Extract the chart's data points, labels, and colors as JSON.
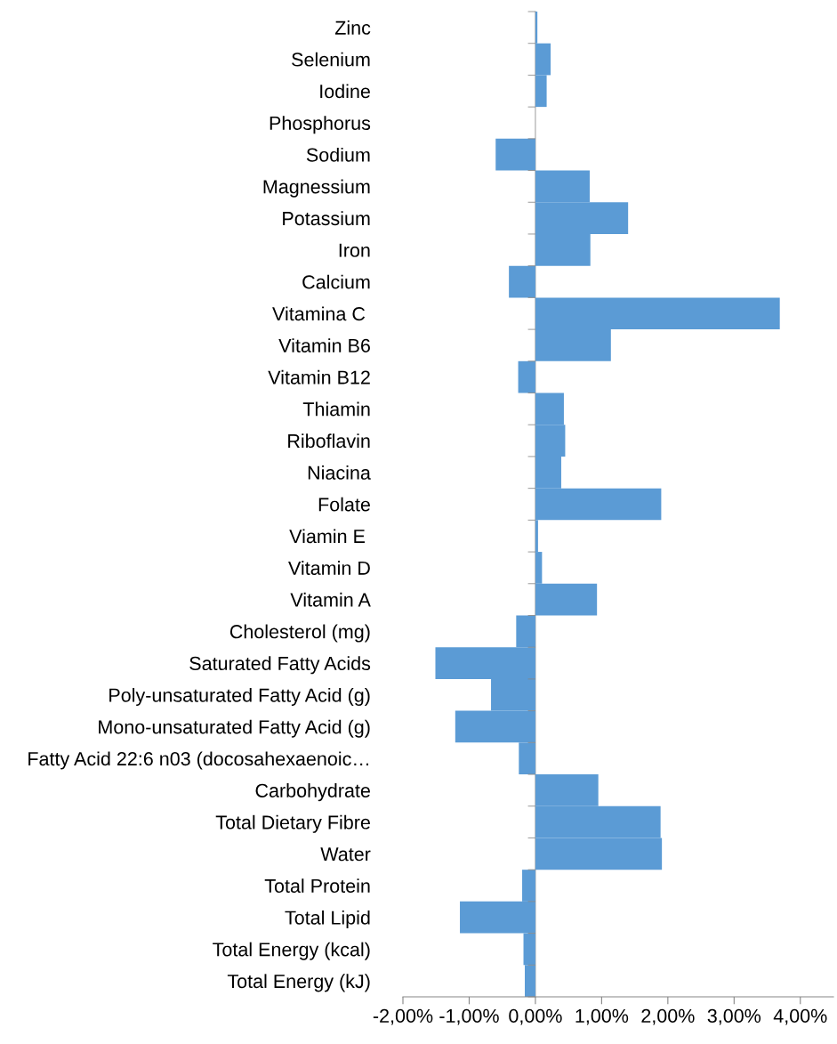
{
  "chart_data": {
    "type": "bar",
    "orientation": "horizontal",
    "color": "#5b9bd5",
    "categories": [
      "Zinc",
      "Selenium",
      "Iodine",
      "Phosphorus",
      "Sodium",
      "Magnessium",
      "Potassium",
      "Iron",
      "Calcium",
      "Vitamina C ",
      "Vitamin B6",
      "Vitamin B12",
      "Thiamin",
      "Riboflavin",
      "Niacina",
      "Folate",
      "Viamin E ",
      "Vitamin D",
      "Vitamin A",
      "Cholesterol (mg)",
      "Saturated Fatty Acids",
      "Poly-unsaturated Fatty Acid (g)",
      "Mono-unsaturated Fatty Acid (g)",
      "Fatty Acid 22:6 n03 (docosahexaenoic…",
      "Carbohydrate",
      "Total Dietary Fibre",
      "Water",
      "Total Protein",
      "Total Lipid",
      "Total Energy (kcal)",
      "Total Energy (kJ)"
    ],
    "values": [
      0.03,
      0.23,
      0.17,
      0,
      -0.6,
      0.82,
      1.4,
      0.83,
      -0.4,
      3.69,
      1.14,
      -0.26,
      0.43,
      0.45,
      0.39,
      1.9,
      0.04,
      0.1,
      0.93,
      -0.29,
      -1.51,
      -0.67,
      -1.21,
      -0.25,
      0.95,
      1.89,
      1.91,
      -0.2,
      -1.14,
      -0.18,
      -0.16
    ],
    "xlim": [
      -2,
      4.5
    ],
    "xticks": [
      {
        "value": -2,
        "label": "-2,00%"
      },
      {
        "value": -1,
        "label": "-1,00%"
      },
      {
        "value": 0,
        "label": "0,00%"
      },
      {
        "value": 1,
        "label": "1,00%"
      },
      {
        "value": 2,
        "label": "2,00%"
      },
      {
        "value": 3,
        "label": "3,00%"
      },
      {
        "value": 4,
        "label": "4,00%"
      }
    ],
    "legend": false
  }
}
